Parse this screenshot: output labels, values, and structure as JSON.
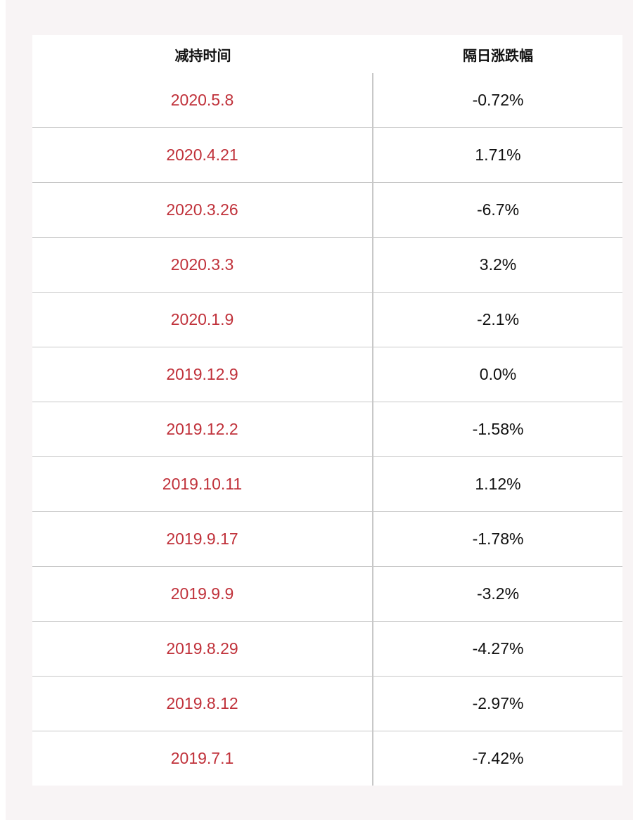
{
  "table": {
    "headers": {
      "date": "减持时间",
      "change": "隔日涨跌幅"
    },
    "rows": [
      {
        "date": "2020.5.8",
        "change": "-0.72%"
      },
      {
        "date": "2020.4.21",
        "change": "1.71%"
      },
      {
        "date": "2020.3.26",
        "change": "-6.7%"
      },
      {
        "date": "2020.3.3",
        "change": "3.2%"
      },
      {
        "date": "2020.1.9",
        "change": "-2.1%"
      },
      {
        "date": "2019.12.9",
        "change": "0.0%"
      },
      {
        "date": "2019.12.2",
        "change": "-1.58%"
      },
      {
        "date": "2019.10.11",
        "change": "1.12%"
      },
      {
        "date": "2019.9.17",
        "change": "-1.78%"
      },
      {
        "date": "2019.9.9",
        "change": "-3.2%"
      },
      {
        "date": "2019.8.29",
        "change": "-4.27%"
      },
      {
        "date": "2019.8.12",
        "change": "-2.97%"
      },
      {
        "date": "2019.7.1",
        "change": "-7.42%"
      }
    ]
  },
  "colors": {
    "date_text": "#c0313a",
    "value_text": "#111111",
    "background": "#f8f4f5",
    "divider": "#c8c8c8"
  }
}
